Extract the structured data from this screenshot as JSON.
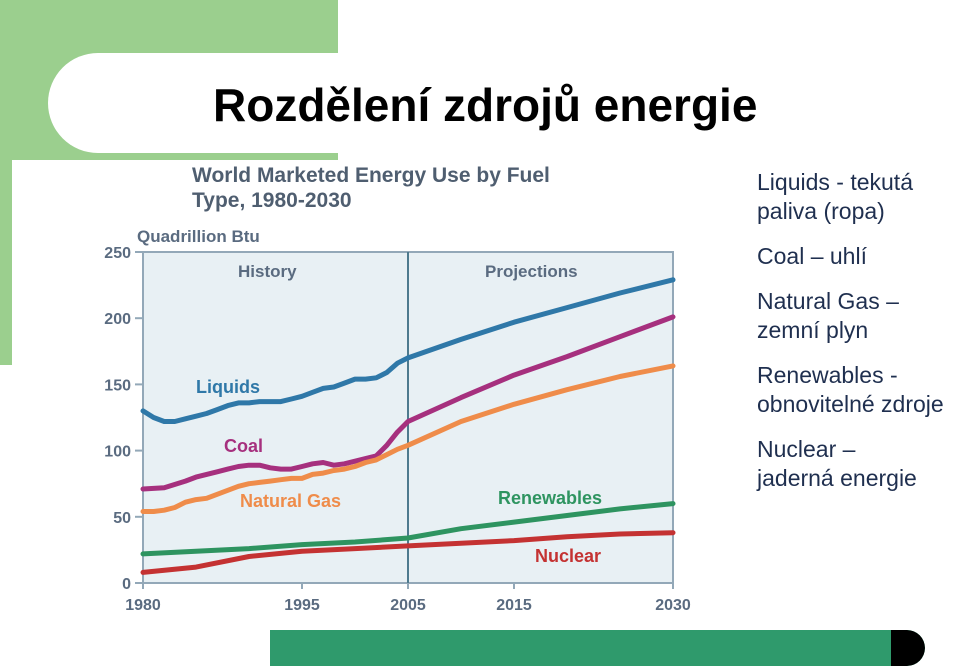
{
  "slide": {
    "title": "Rozdělení zdrojů energie"
  },
  "notes": [
    {
      "lines": [
        "Liquids - tekutá",
        "paliva (ropa)"
      ]
    },
    {
      "lines": [
        "Coal – uhlí"
      ]
    },
    {
      "lines": [
        "Natural Gas –",
        "zemní plyn"
      ]
    },
    {
      "lines": [
        "Renewables -",
        "obnovitelné zdroje"
      ]
    },
    {
      "lines": [
        "Nuclear –",
        "jaderná energie"
      ]
    }
  ],
  "chart_data": {
    "type": "line",
    "title_lines": [
      "World Marketed Energy Use by Fuel",
      "Type, 1980-2030"
    ],
    "ylabel": "Quadrillion Btu",
    "xlabel": "",
    "xlim": [
      1980,
      2030
    ],
    "ylim": [
      0,
      250
    ],
    "x_ticks": [
      1980,
      1995,
      2005,
      2015,
      2030
    ],
    "y_ticks": [
      0,
      50,
      100,
      150,
      200,
      250
    ],
    "grid": false,
    "divider_x": 2005,
    "region_labels": {
      "history": "History",
      "projections": "Projections"
    },
    "colors": {
      "plot_bg": "#e8f0f4",
      "axis": "#93a8b8",
      "divider": "#4e7a8e",
      "Liquids": "#2f78a8",
      "Coal": "#a6307e",
      "Natural Gas": "#ef8c4a",
      "Renewables": "#2e9460",
      "Nuclear": "#c43232"
    },
    "series": [
      {
        "name": "Liquids",
        "x": [
          1980,
          1981,
          1982,
          1983,
          1984,
          1985,
          1986,
          1987,
          1988,
          1989,
          1990,
          1991,
          1992,
          1993,
          1994,
          1995,
          1996,
          1997,
          1998,
          1999,
          2000,
          2001,
          2002,
          2003,
          2004,
          2005,
          2010,
          2015,
          2020,
          2025,
          2030
        ],
        "values": [
          130,
          125,
          122,
          122,
          124,
          126,
          128,
          131,
          134,
          136,
          136,
          137,
          137,
          137,
          139,
          141,
          144,
          147,
          148,
          151,
          154,
          154,
          155,
          159,
          166,
          170,
          184,
          197,
          208,
          219,
          229
        ]
      },
      {
        "name": "Coal",
        "x": [
          1980,
          1982,
          1984,
          1985,
          1986,
          1987,
          1988,
          1989,
          1990,
          1991,
          1992,
          1993,
          1994,
          1995,
          1996,
          1997,
          1998,
          1999,
          2000,
          2001,
          2002,
          2003,
          2004,
          2005,
          2010,
          2015,
          2020,
          2025,
          2030
        ],
        "values": [
          71,
          72,
          77,
          80,
          82,
          84,
          86,
          88,
          89,
          89,
          87,
          86,
          86,
          88,
          90,
          91,
          89,
          90,
          92,
          94,
          96,
          104,
          114,
          122,
          140,
          157,
          171,
          186,
          201
        ]
      },
      {
        "name": "Natural Gas",
        "x": [
          1980,
          1981,
          1982,
          1983,
          1984,
          1985,
          1986,
          1987,
          1988,
          1989,
          1990,
          1991,
          1992,
          1993,
          1994,
          1995,
          1996,
          1997,
          1998,
          1999,
          2000,
          2001,
          2002,
          2003,
          2004,
          2005,
          2010,
          2015,
          2020,
          2025,
          2030
        ],
        "values": [
          54,
          54,
          55,
          57,
          61,
          63,
          64,
          67,
          70,
          73,
          75,
          76,
          77,
          78,
          79,
          79,
          82,
          83,
          85,
          86,
          88,
          91,
          93,
          97,
          101,
          104,
          122,
          135,
          146,
          156,
          164
        ]
      },
      {
        "name": "Renewables",
        "x": [
          1980,
          1985,
          1990,
          1995,
          2000,
          2005,
          2010,
          2015,
          2020,
          2025,
          2030
        ],
        "values": [
          22,
          24,
          26,
          29,
          31,
          34,
          41,
          46,
          51,
          56,
          60
        ]
      },
      {
        "name": "Nuclear",
        "x": [
          1980,
          1985,
          1990,
          1995,
          2000,
          2005,
          2010,
          2015,
          2020,
          2025,
          2030
        ],
        "values": [
          8,
          12,
          20,
          24,
          26,
          28,
          30,
          32,
          35,
          37,
          38
        ]
      }
    ]
  }
}
